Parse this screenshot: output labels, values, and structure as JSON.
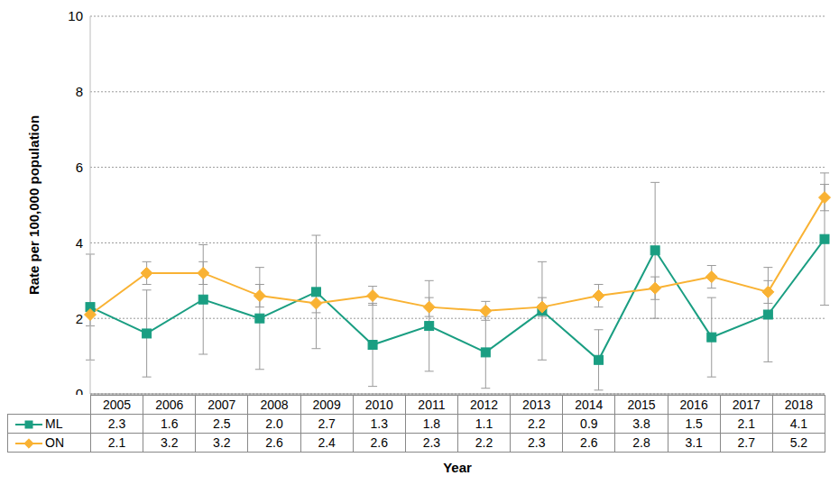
{
  "chart_data": {
    "type": "line",
    "x_label": "Year",
    "y_label": "Rate per 100,000 population",
    "categories": [
      "2005",
      "2006",
      "2007",
      "2008",
      "2009",
      "2010",
      "2011",
      "2012",
      "2013",
      "2014",
      "2015",
      "2016",
      "2017",
      "2018"
    ],
    "ylim": [
      0,
      10
    ],
    "yticks": [
      0,
      2,
      4,
      6,
      8,
      10
    ],
    "grid": true,
    "series": [
      {
        "name": "ML",
        "color": "#1a9e82",
        "marker": "square",
        "values": [
          2.3,
          1.6,
          2.5,
          2.0,
          2.7,
          1.3,
          1.8,
          1.1,
          2.2,
          0.9,
          3.8,
          1.5,
          2.1,
          4.1
        ],
        "value_labels": [
          "2.3",
          "1.6",
          "2.5",
          "2.0",
          "2.7",
          "1.3",
          "1.8",
          "1.1",
          "2.2",
          "0.9",
          "3.8",
          "1.5",
          "2.1",
          "4.1"
        ],
        "error_low": [
          0.9,
          0.45,
          1.05,
          0.65,
          1.2,
          0.2,
          0.6,
          0.15,
          0.9,
          0.1,
          2.0,
          0.45,
          0.85,
          2.35
        ],
        "error_high": [
          3.7,
          2.75,
          3.95,
          3.35,
          4.2,
          2.4,
          3.0,
          2.05,
          3.5,
          1.7,
          5.6,
          2.55,
          3.35,
          5.85
        ]
      },
      {
        "name": "ON",
        "color": "#f9b233",
        "marker": "diamond",
        "values": [
          2.1,
          3.2,
          3.2,
          2.6,
          2.4,
          2.6,
          2.3,
          2.2,
          2.3,
          2.6,
          2.8,
          3.1,
          2.7,
          5.2
        ],
        "value_labels": [
          "2.1",
          "3.2",
          "3.2",
          "2.6",
          "2.4",
          "2.6",
          "2.3",
          "2.2",
          "2.3",
          "2.6",
          "2.8",
          "3.1",
          "2.7",
          "5.2"
        ],
        "error_low": [
          1.8,
          2.9,
          2.9,
          2.3,
          2.15,
          2.35,
          2.05,
          1.95,
          2.05,
          2.3,
          2.5,
          2.8,
          2.4,
          4.85
        ],
        "error_high": [
          2.4,
          3.5,
          3.5,
          2.9,
          2.7,
          2.85,
          2.55,
          2.45,
          2.55,
          2.9,
          3.1,
          3.4,
          3.0,
          5.55
        ]
      }
    ]
  }
}
